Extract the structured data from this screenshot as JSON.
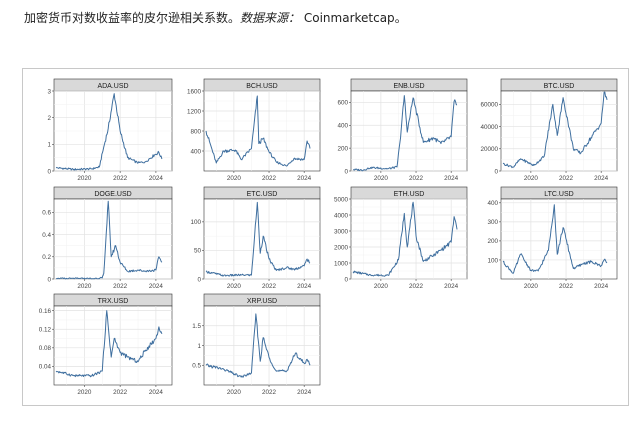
{
  "caption": {
    "main": "加密货币对数收益率的皮尔逊相关系数。",
    "source_label": "数据来源：",
    "source": "Coinmarketcap",
    "end": "。"
  },
  "chart_data": [
    {
      "type": "line",
      "title": "ADA.USD",
      "x_ticks": [
        "2020",
        "2022",
        "2024"
      ],
      "ylim": [
        0,
        3
      ],
      "y_ticks": [
        0,
        1,
        2,
        3
      ],
      "series": [
        {
          "x": [
            "2018-06",
            "2019-06",
            "2020-06",
            "2020-11",
            "2021-02",
            "2021-05",
            "2021-09",
            "2022-01",
            "2022-06",
            "2023-01",
            "2023-06",
            "2023-12",
            "2024-03",
            "2024-05"
          ],
          "values": [
            0.12,
            0.06,
            0.08,
            0.15,
            0.9,
            1.6,
            2.9,
            1.5,
            0.5,
            0.3,
            0.35,
            0.6,
            0.7,
            0.45
          ]
        }
      ]
    },
    {
      "type": "line",
      "title": "BCH.USD",
      "x_ticks": [
        "2020",
        "2022",
        "2024"
      ],
      "ylim": [
        0,
        1600
      ],
      "y_ticks": [
        400,
        800,
        1200,
        1600
      ],
      "series": [
        {
          "x": [
            "2018-06",
            "2019-01",
            "2019-06",
            "2020-02",
            "2020-06",
            "2021-01",
            "2021-05",
            "2021-06",
            "2021-09",
            "2022-01",
            "2022-06",
            "2023-01",
            "2023-06",
            "2024-01",
            "2024-03",
            "2024-05"
          ],
          "values": [
            800,
            160,
            400,
            420,
            230,
            450,
            1500,
            550,
            650,
            380,
            180,
            100,
            250,
            230,
            600,
            450
          ]
        }
      ]
    },
    {
      "type": "line",
      "title": "ENB.USD",
      "x_ticks": [
        "2020",
        "2022",
        "2024"
      ],
      "ylim": [
        0,
        700
      ],
      "y_ticks": [
        0,
        200,
        400,
        600
      ],
      "series": [
        {
          "x": [
            "2018-06",
            "2019-01",
            "2019-06",
            "2020-06",
            "2020-12",
            "2021-02",
            "2021-05",
            "2021-07",
            "2021-11",
            "2022-06",
            "2023-01",
            "2023-06",
            "2024-01",
            "2024-03",
            "2024-05"
          ],
          "values": [
            12,
            8,
            30,
            20,
            35,
            250,
            660,
            340,
            640,
            250,
            290,
            240,
            300,
            610,
            580
          ]
        }
      ]
    },
    {
      "type": "line",
      "title": "BTC.USD",
      "x_ticks": [
        "2020",
        "2022",
        "2024"
      ],
      "ylim": [
        0,
        72000
      ],
      "y_ticks": [
        0,
        20000,
        40000,
        60000
      ],
      "series": [
        {
          "x": [
            "2018-06",
            "2019-01",
            "2019-06",
            "2020-03",
            "2020-10",
            "2021-04",
            "2021-07",
            "2021-11",
            "2022-06",
            "2022-11",
            "2023-06",
            "2024-01",
            "2024-03",
            "2024-05"
          ],
          "values": [
            6500,
            3500,
            11000,
            5000,
            13000,
            60000,
            32000,
            66000,
            20000,
            16000,
            30000,
            43000,
            71000,
            64000
          ]
        }
      ]
    },
    {
      "type": "line",
      "title": "DOGE.USD",
      "x_ticks": [
        "2020",
        "2022",
        "2024"
      ],
      "ylim": [
        0,
        0.72
      ],
      "y_ticks": [
        0,
        0.2,
        0.4,
        0.6
      ],
      "series": [
        {
          "x": [
            "2018-06",
            "2019-06",
            "2020-06",
            "2021-01",
            "2021-02",
            "2021-05",
            "2021-07",
            "2021-10",
            "2022-01",
            "2022-06",
            "2023-01",
            "2023-06",
            "2024-01",
            "2024-03",
            "2024-05"
          ],
          "values": [
            0.003,
            0.003,
            0.003,
            0.01,
            0.05,
            0.7,
            0.2,
            0.3,
            0.15,
            0.07,
            0.08,
            0.07,
            0.08,
            0.2,
            0.15
          ]
        }
      ]
    },
    {
      "type": "line",
      "title": "ETC.USD",
      "x_ticks": [
        "2020",
        "2022",
        "2024"
      ],
      "ylim": [
        0,
        140
      ],
      "y_ticks": [
        0,
        50,
        100
      ],
      "series": [
        {
          "x": [
            "2018-06",
            "2019-06",
            "2020-06",
            "2021-01",
            "2021-05",
            "2021-07",
            "2021-09",
            "2022-01",
            "2022-06",
            "2023-01",
            "2023-06",
            "2024-01",
            "2024-03",
            "2024-05"
          ],
          "values": [
            13,
            6,
            7,
            7,
            134,
            45,
            75,
            35,
            15,
            20,
            17,
            23,
            35,
            28
          ]
        }
      ]
    },
    {
      "type": "line",
      "title": "ETH.USD",
      "x_ticks": [
        "2020",
        "2022",
        "2024"
      ],
      "ylim": [
        0,
        5000
      ],
      "y_ticks": [
        0,
        1000,
        2000,
        3000,
        4000,
        5000
      ],
      "series": [
        {
          "x": [
            "2018-06",
            "2019-06",
            "2020-06",
            "2021-01",
            "2021-05",
            "2021-07",
            "2021-11",
            "2022-01",
            "2022-06",
            "2023-01",
            "2023-06",
            "2024-01",
            "2024-03",
            "2024-05"
          ],
          "values": [
            450,
            250,
            230,
            1200,
            4100,
            2000,
            4800,
            2700,
            1100,
            1500,
            1800,
            2300,
            3900,
            3100
          ]
        }
      ]
    },
    {
      "type": "line",
      "title": "LTC.USD",
      "x_ticks": [
        "2020",
        "2022",
        "2024"
      ],
      "ylim": [
        0,
        420
      ],
      "y_ticks": [
        100,
        200,
        300,
        400
      ],
      "series": [
        {
          "x": [
            "2018-06",
            "2019-01",
            "2019-06",
            "2020-01",
            "2020-06",
            "2021-01",
            "2021-05",
            "2021-07",
            "2021-11",
            "2022-06",
            "2023-01",
            "2023-06",
            "2024-01",
            "2024-03",
            "2024-05"
          ],
          "values": [
            90,
            30,
            130,
            45,
            42,
            150,
            390,
            130,
            270,
            55,
            80,
            90,
            70,
            100,
            85
          ]
        }
      ]
    },
    {
      "type": "line",
      "title": "TRX.USD",
      "x_ticks": [
        "2020",
        "2022",
        "2024"
      ],
      "ylim": [
        0,
        0.17
      ],
      "y_ticks": [
        0.04,
        0.08,
        0.12,
        0.16
      ],
      "series": [
        {
          "x": [
            "2018-06",
            "2019-06",
            "2020-06",
            "2021-01",
            "2021-04",
            "2021-07",
            "2021-09",
            "2022-01",
            "2022-06",
            "2023-01",
            "2023-06",
            "2024-01",
            "2024-03",
            "2024-05"
          ],
          "values": [
            0.03,
            0.02,
            0.02,
            0.03,
            0.16,
            0.06,
            0.1,
            0.07,
            0.06,
            0.05,
            0.075,
            0.1,
            0.125,
            0.11
          ]
        }
      ]
    },
    {
      "type": "line",
      "title": "XRP.USD",
      "x_ticks": [
        "2020",
        "2022",
        "2024"
      ],
      "ylim": [
        0,
        2.0
      ],
      "y_ticks": [
        0.5,
        1.0,
        1.5
      ],
      "series": [
        {
          "x": [
            "2018-06",
            "2019-06",
            "2020-06",
            "2021-01",
            "2021-04",
            "2021-07",
            "2021-09",
            "2022-01",
            "2022-06",
            "2023-01",
            "2023-07",
            "2024-01",
            "2024-03",
            "2024-05"
          ],
          "values": [
            0.5,
            0.4,
            0.2,
            0.3,
            1.8,
            0.6,
            1.2,
            0.7,
            0.35,
            0.35,
            0.8,
            0.55,
            0.65,
            0.5
          ]
        }
      ]
    }
  ]
}
